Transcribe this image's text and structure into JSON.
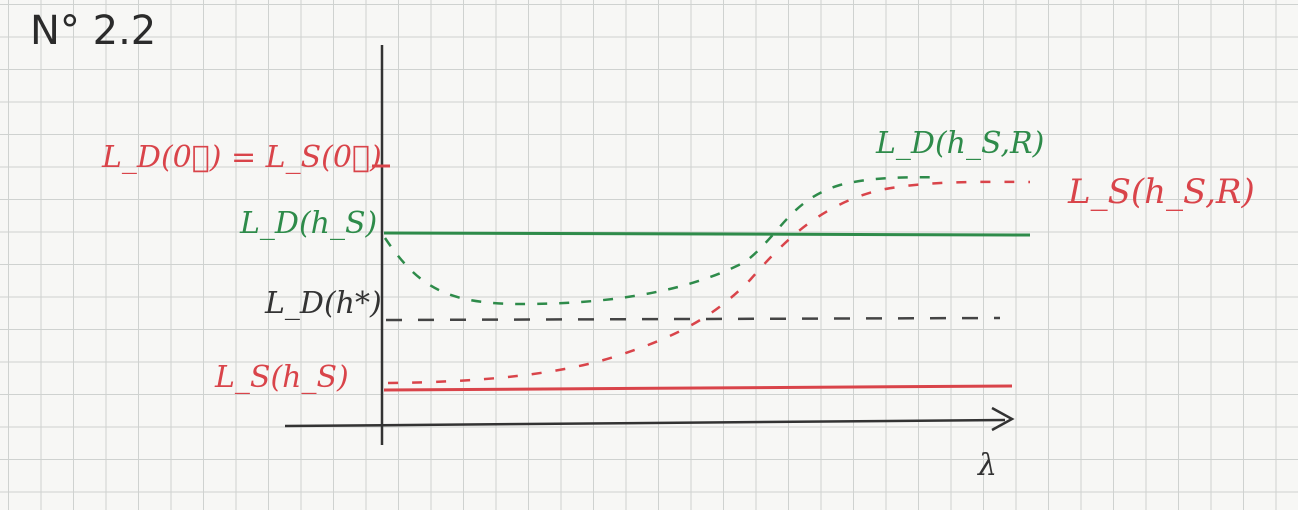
{
  "title": "N° 2.2",
  "labels": {
    "l0": "L_D(0⃗) = L_S(0⃗)",
    "ld_hs": "L_D(h_S)",
    "ld_hstar": "L_D(h*)",
    "ls_hs": "L_S(h_S)",
    "ld_hsr": "L_D(h_S,R)",
    "ls_hsr": "L_S(h_S,R)",
    "x_axis": "λ"
  },
  "colors": {
    "green": "#2e8b4a",
    "red": "#d9444a",
    "dark": "#333333"
  }
}
